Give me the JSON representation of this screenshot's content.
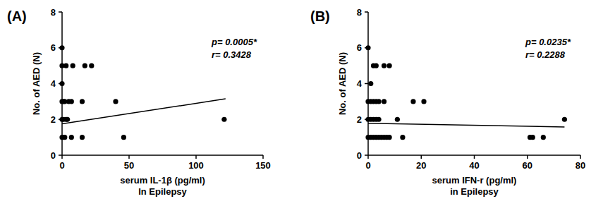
{
  "chart_data": [
    {
      "type": "scatter",
      "title": "(A)",
      "xlabel": "serum IL-1β (pg/ml)\nIn Epilepsy",
      "ylabel": "No. of AED (N)",
      "annotations": [
        "p= 0.0005*",
        "r= 0.3428"
      ],
      "xlim": [
        0,
        150
      ],
      "xticks": [
        0,
        50,
        100,
        150
      ],
      "ylim": [
        0,
        8
      ],
      "yticks": [
        0,
        2,
        4,
        6,
        8
      ],
      "grid": false,
      "series": [
        {
          "type": "scatter",
          "marker": "circle",
          "color": "#000000",
          "x": [
            0,
            0,
            0,
            0,
            0,
            0,
            1,
            1,
            1,
            2,
            2,
            3,
            3,
            4,
            5,
            7,
            7,
            8,
            15,
            15,
            17,
            22,
            40,
            46,
            121
          ],
          "values": [
            6,
            5,
            4,
            3,
            2,
            1,
            1,
            2,
            3,
            3,
            1,
            2,
            5,
            2,
            3,
            3,
            1,
            5,
            3,
            1,
            5,
            5,
            3,
            1,
            2
          ]
        },
        {
          "type": "line",
          "line_style": "solid",
          "color": "#000000",
          "x": [
            0,
            122
          ],
          "values": [
            1.75,
            3.15
          ]
        }
      ]
    },
    {
      "type": "scatter",
      "title": "(B)",
      "xlabel": "serum IFN-r (pg/ml)\nin Epilepsy",
      "ylabel": "No. of AED (N)",
      "annotations": [
        "p= 0.0235*",
        "r= 0.2288"
      ],
      "xlim": [
        0,
        80
      ],
      "xticks": [
        0,
        20,
        40,
        60,
        80
      ],
      "ylim": [
        0,
        8
      ],
      "yticks": [
        0,
        2,
        4,
        6,
        8
      ],
      "grid": false,
      "series": [
        {
          "type": "scatter",
          "marker": "circle",
          "color": "#000000",
          "x": [
            0,
            1,
            0,
            2,
            3,
            6,
            8,
            1,
            2,
            3,
            4,
            6,
            0,
            1,
            2,
            3,
            4,
            11,
            0,
            1,
            2,
            3,
            4,
            5,
            6,
            7,
            8,
            13,
            17,
            21,
            61,
            62,
            66,
            74
          ],
          "values": [
            6,
            4,
            3,
            5,
            5,
            5,
            5,
            3,
            3,
            3,
            3,
            3,
            2,
            2,
            2,
            2,
            2,
            2,
            1,
            1,
            1,
            1,
            1,
            1,
            1,
            1,
            1,
            1,
            3,
            3,
            1,
            1,
            1,
            2
          ]
        },
        {
          "type": "line",
          "line_style": "solid",
          "color": "#000000",
          "x": [
            0,
            74
          ],
          "values": [
            1.78,
            1.58
          ]
        }
      ]
    }
  ]
}
